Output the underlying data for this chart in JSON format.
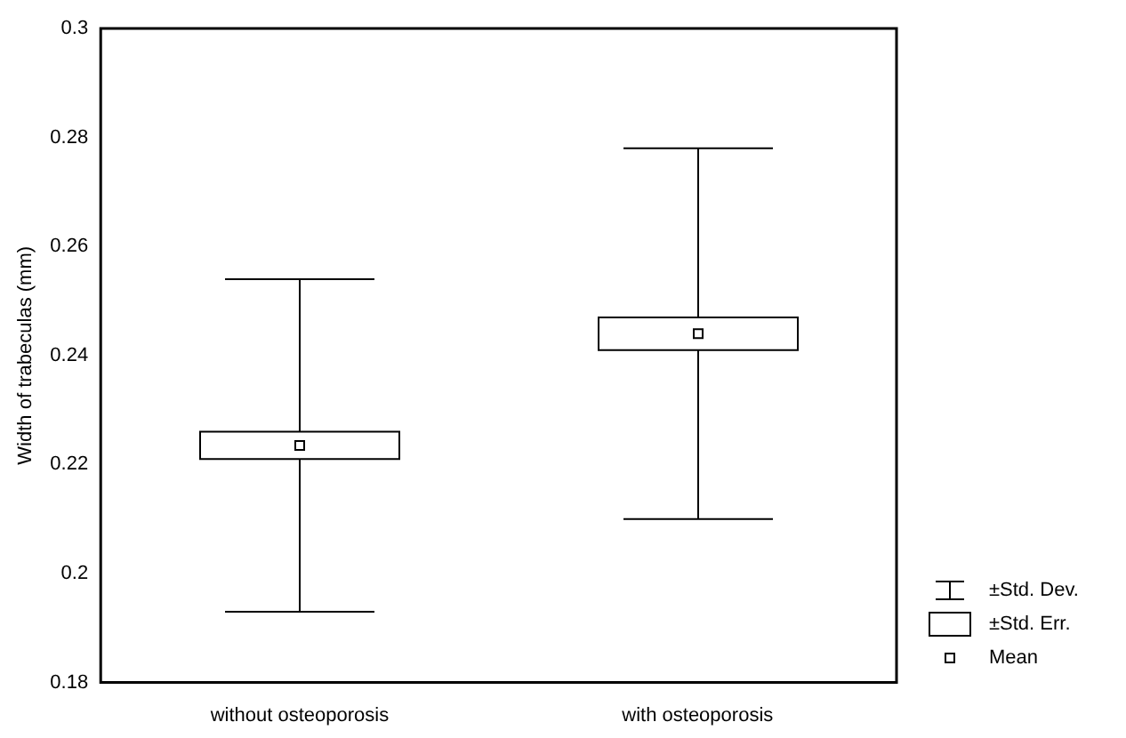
{
  "chart_data": {
    "type": "box",
    "ylabel": "Width of trabeculas (mm)",
    "categories": [
      "without osteoporosis",
      "with osteoporosis"
    ],
    "boxes": [
      {
        "low": 0.193,
        "q1": 0.221,
        "median": 0.2235,
        "q3": 0.226,
        "high": 0.254
      },
      {
        "low": 0.21,
        "q1": 0.241,
        "median": 0.244,
        "q3": 0.247,
        "high": 0.278
      }
    ],
    "ylim": [
      0.18,
      0.3
    ],
    "yticks": [
      0.18,
      0.2,
      0.22,
      0.24,
      0.26,
      0.28,
      0.3
    ],
    "annotations": [
      "±Std. Dev.",
      "±Std. Err.",
      "Mean"
    ]
  }
}
